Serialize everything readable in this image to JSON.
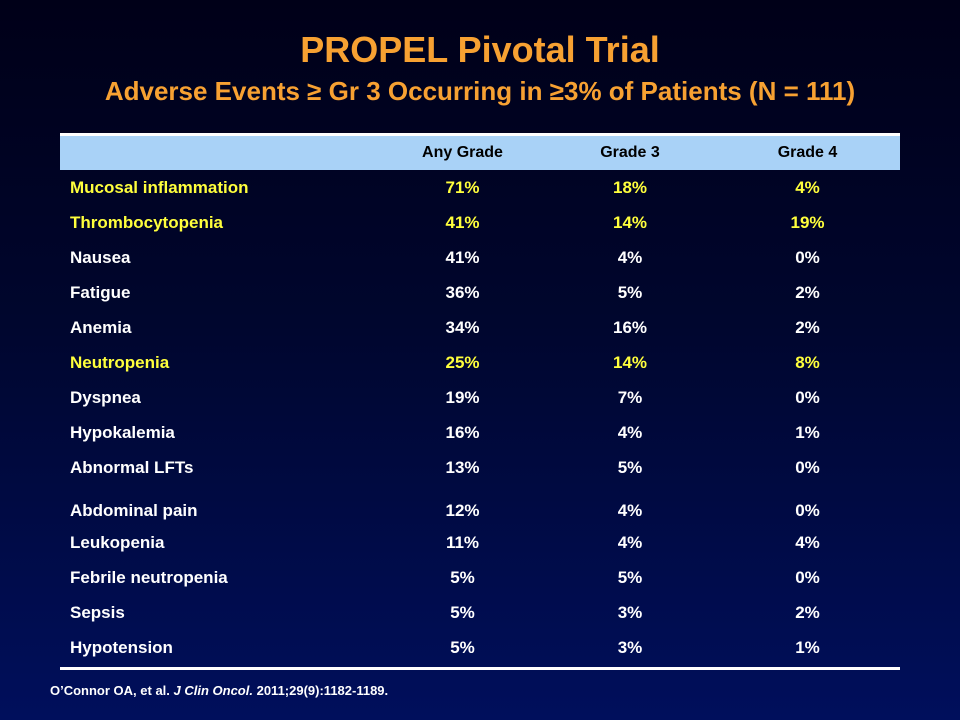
{
  "slide": {
    "title": "PROPEL Pivotal Trial",
    "subtitle": "Adverse Events ≥ Gr 3 Occurring in ≥3% of Patients (N = 111)"
  },
  "colors": {
    "title": "#f7a132",
    "highlight": "#ffff3c",
    "header_bg": "#a9d2f7"
  },
  "table": {
    "columns": [
      "",
      "Any Grade",
      "Grade 3",
      "Grade 4"
    ],
    "rows": [
      {
        "event": "Mucosal inflammation",
        "any": "71%",
        "g3": "18%",
        "g4": "4%",
        "highlight": true
      },
      {
        "event": "Thrombocytopenia",
        "any": "41%",
        "g3": "14%",
        "g4": "19%",
        "highlight": true
      },
      {
        "event": "Nausea",
        "any": "41%",
        "g3": "4%",
        "g4": "0%",
        "highlight": false
      },
      {
        "event": "Fatigue",
        "any": "36%",
        "g3": "5%",
        "g4": "2%",
        "highlight": false
      },
      {
        "event": "Anemia",
        "any": "34%",
        "g3": "16%",
        "g4": "2%",
        "highlight": false
      },
      {
        "event": "Neutropenia",
        "any": "25%",
        "g3": "14%",
        "g4": "8%",
        "highlight": true
      },
      {
        "event": "Dyspnea",
        "any": "19%",
        "g3": "7%",
        "g4": "0%",
        "highlight": false
      },
      {
        "event": "Hypokalemia",
        "any": "16%",
        "g3": "4%",
        "g4": "1%",
        "highlight": false
      },
      {
        "event": "Abnormal LFTs",
        "any": "13%",
        "g3": "5%",
        "g4": "0%",
        "highlight": false
      },
      {
        "event": "Abdominal pain",
        "any": "12%",
        "g3": "4%",
        "g4": "0%",
        "highlight": false
      },
      {
        "event": "Leukopenia",
        "any": "11%",
        "g3": "4%",
        "g4": "4%",
        "highlight": false
      },
      {
        "event": "Febrile neutropenia",
        "any": "5%",
        "g3": "5%",
        "g4": "0%",
        "highlight": false
      },
      {
        "event": "Sepsis",
        "any": "5%",
        "g3": "3%",
        "g4": "2%",
        "highlight": false
      },
      {
        "event": "Hypotension",
        "any": "5%",
        "g3": "3%",
        "g4": "1%",
        "highlight": false
      }
    ]
  },
  "citation": {
    "authors": "O’Connor OA, et al. ",
    "journal": "J Clin Oncol.",
    "details": " 2011;29(9):1182-1189."
  }
}
